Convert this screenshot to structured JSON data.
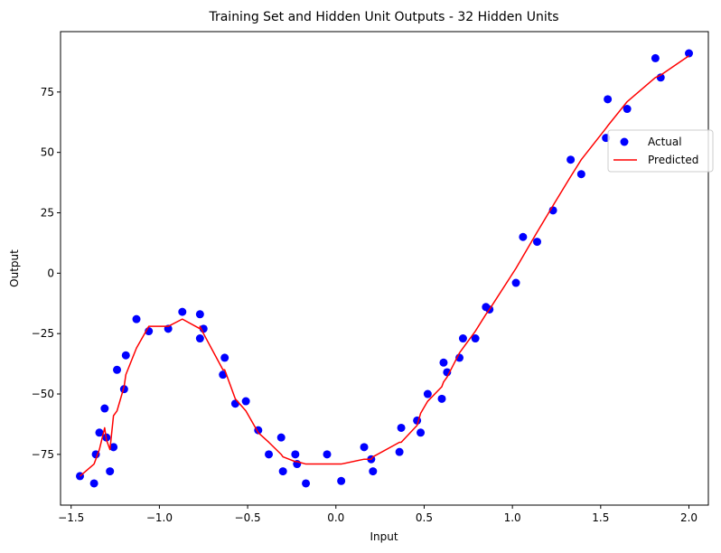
{
  "chart_data": {
    "type": "scatter",
    "title": "Training Set and Hidden Unit Outputs - 32 Hidden Units",
    "xlabel": "Input",
    "ylabel": "Output",
    "xlim": [
      -1.56,
      2.11
    ],
    "ylim": [
      -96.0,
      100.0
    ],
    "xticks": [
      -1.5,
      -1.0,
      -0.5,
      0.0,
      0.5,
      1.0,
      1.5,
      2.0
    ],
    "xtick_labels": [
      "−1.5",
      "−1.0",
      "−0.5",
      "0.0",
      "0.5",
      "1.0",
      "1.5",
      "2.0"
    ],
    "yticks": [
      -75,
      -50,
      -25,
      0,
      25,
      50,
      75
    ],
    "ytick_labels": [
      "−75",
      "−50",
      "−25",
      "0",
      "25",
      "50",
      "75"
    ],
    "grid": false,
    "legend_position": "center-right",
    "series": [
      {
        "name": "Actual",
        "kind": "scatter",
        "color": "#0000ff",
        "points": [
          [
            -1.45,
            -84
          ],
          [
            -1.37,
            -87
          ],
          [
            -1.36,
            -75
          ],
          [
            -1.34,
            -66
          ],
          [
            -1.31,
            -56
          ],
          [
            -1.3,
            -68
          ],
          [
            -1.28,
            -82
          ],
          [
            -1.26,
            -72
          ],
          [
            -1.24,
            -40
          ],
          [
            -1.2,
            -48
          ],
          [
            -1.19,
            -34
          ],
          [
            -1.13,
            -19
          ],
          [
            -1.06,
            -24
          ],
          [
            -0.95,
            -23
          ],
          [
            -0.87,
            -16
          ],
          [
            -0.77,
            -17
          ],
          [
            -0.77,
            -27
          ],
          [
            -0.75,
            -23
          ],
          [
            -0.64,
            -42
          ],
          [
            -0.63,
            -35
          ],
          [
            -0.57,
            -54
          ],
          [
            -0.51,
            -53
          ],
          [
            -0.44,
            -65
          ],
          [
            -0.38,
            -75
          ],
          [
            -0.31,
            -68
          ],
          [
            -0.3,
            -82
          ],
          [
            -0.23,
            -75
          ],
          [
            -0.22,
            -79
          ],
          [
            -0.17,
            -87
          ],
          [
            -0.05,
            -75
          ],
          [
            0.03,
            -86
          ],
          [
            0.16,
            -72
          ],
          [
            0.2,
            -77
          ],
          [
            0.21,
            -82
          ],
          [
            0.36,
            -74
          ],
          [
            0.37,
            -64
          ],
          [
            0.46,
            -61
          ],
          [
            0.48,
            -66
          ],
          [
            0.52,
            -50
          ],
          [
            0.6,
            -52
          ],
          [
            0.61,
            -37
          ],
          [
            0.63,
            -41
          ],
          [
            0.7,
            -35
          ],
          [
            0.72,
            -27
          ],
          [
            0.79,
            -27
          ],
          [
            0.85,
            -14
          ],
          [
            0.87,
            -15
          ],
          [
            1.02,
            -4
          ],
          [
            1.06,
            15
          ],
          [
            1.14,
            13
          ],
          [
            1.23,
            26
          ],
          [
            1.33,
            47
          ],
          [
            1.39,
            41
          ],
          [
            1.53,
            56
          ],
          [
            1.54,
            72
          ],
          [
            1.65,
            68
          ],
          [
            1.81,
            89
          ],
          [
            1.84,
            81
          ],
          [
            2.0,
            91
          ]
        ]
      },
      {
        "name": "Predicted",
        "kind": "line",
        "color": "#ff0000",
        "points": [
          [
            -1.45,
            -84
          ],
          [
            -1.37,
            -79
          ],
          [
            -1.36,
            -77
          ],
          [
            -1.34,
            -73
          ],
          [
            -1.31,
            -64
          ],
          [
            -1.3,
            -69
          ],
          [
            -1.28,
            -73
          ],
          [
            -1.26,
            -59
          ],
          [
            -1.24,
            -57
          ],
          [
            -1.2,
            -47
          ],
          [
            -1.19,
            -42
          ],
          [
            -1.13,
            -31
          ],
          [
            -1.06,
            -22
          ],
          [
            -0.95,
            -22
          ],
          [
            -0.87,
            -19
          ],
          [
            -0.77,
            -23
          ],
          [
            -0.77,
            -22
          ],
          [
            -0.75,
            -25
          ],
          [
            -0.64,
            -40
          ],
          [
            -0.63,
            -40
          ],
          [
            -0.57,
            -52
          ],
          [
            -0.51,
            -57
          ],
          [
            -0.44,
            -66
          ],
          [
            -0.38,
            -70
          ],
          [
            -0.31,
            -75
          ],
          [
            -0.3,
            -76
          ],
          [
            -0.23,
            -78
          ],
          [
            -0.22,
            -78
          ],
          [
            -0.17,
            -79
          ],
          [
            -0.05,
            -79
          ],
          [
            0.03,
            -79
          ],
          [
            0.16,
            -77
          ],
          [
            0.2,
            -77
          ],
          [
            0.21,
            -76
          ],
          [
            0.36,
            -70
          ],
          [
            0.37,
            -70
          ],
          [
            0.46,
            -63
          ],
          [
            0.48,
            -58
          ],
          [
            0.52,
            -53
          ],
          [
            0.6,
            -47
          ],
          [
            0.61,
            -45
          ],
          [
            0.63,
            -43
          ],
          [
            0.7,
            -33
          ],
          [
            0.72,
            -31
          ],
          [
            0.79,
            -24
          ],
          [
            0.85,
            -17
          ],
          [
            0.87,
            -15
          ],
          [
            1.02,
            2
          ],
          [
            1.06,
            7
          ],
          [
            1.14,
            17
          ],
          [
            1.23,
            28
          ],
          [
            1.33,
            40
          ],
          [
            1.39,
            47
          ],
          [
            1.53,
            60
          ],
          [
            1.54,
            61
          ],
          [
            1.65,
            71
          ],
          [
            1.81,
            81
          ],
          [
            1.84,
            82
          ],
          [
            2.0,
            90
          ]
        ]
      }
    ]
  }
}
